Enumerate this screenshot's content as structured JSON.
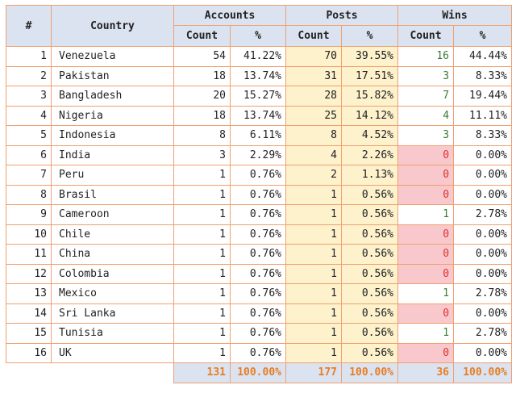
{
  "headers": {
    "hash": "#",
    "country": "Country",
    "accounts": "Accounts",
    "posts": "Posts",
    "wins": "Wins",
    "count": "Count",
    "pct": "%"
  },
  "rows": [
    {
      "n": "1",
      "country": "Venezuela",
      "acc_c": "54",
      "acc_p": "41.22%",
      "post_c": "70",
      "post_p": "39.55%",
      "win_c": "16",
      "win_p": "44.44%"
    },
    {
      "n": "2",
      "country": "Pakistan",
      "acc_c": "18",
      "acc_p": "13.74%",
      "post_c": "31",
      "post_p": "17.51%",
      "win_c": "3",
      "win_p": "8.33%"
    },
    {
      "n": "3",
      "country": "Bangladesh",
      "acc_c": "20",
      "acc_p": "15.27%",
      "post_c": "28",
      "post_p": "15.82%",
      "win_c": "7",
      "win_p": "19.44%"
    },
    {
      "n": "4",
      "country": "Nigeria",
      "acc_c": "18",
      "acc_p": "13.74%",
      "post_c": "25",
      "post_p": "14.12%",
      "win_c": "4",
      "win_p": "11.11%"
    },
    {
      "n": "5",
      "country": "Indonesia",
      "acc_c": "8",
      "acc_p": "6.11%",
      "post_c": "8",
      "post_p": "4.52%",
      "win_c": "3",
      "win_p": "8.33%"
    },
    {
      "n": "6",
      "country": "India",
      "acc_c": "3",
      "acc_p": "2.29%",
      "post_c": "4",
      "post_p": "2.26%",
      "win_c": "0",
      "win_p": "0.00%"
    },
    {
      "n": "7",
      "country": "Peru",
      "acc_c": "1",
      "acc_p": "0.76%",
      "post_c": "2",
      "post_p": "1.13%",
      "win_c": "0",
      "win_p": "0.00%"
    },
    {
      "n": "8",
      "country": "Brasil",
      "acc_c": "1",
      "acc_p": "0.76%",
      "post_c": "1",
      "post_p": "0.56%",
      "win_c": "0",
      "win_p": "0.00%"
    },
    {
      "n": "9",
      "country": "Cameroon",
      "acc_c": "1",
      "acc_p": "0.76%",
      "post_c": "1",
      "post_p": "0.56%",
      "win_c": "1",
      "win_p": "2.78%"
    },
    {
      "n": "10",
      "country": "Chile",
      "acc_c": "1",
      "acc_p": "0.76%",
      "post_c": "1",
      "post_p": "0.56%",
      "win_c": "0",
      "win_p": "0.00%"
    },
    {
      "n": "11",
      "country": "China",
      "acc_c": "1",
      "acc_p": "0.76%",
      "post_c": "1",
      "post_p": "0.56%",
      "win_c": "0",
      "win_p": "0.00%"
    },
    {
      "n": "12",
      "country": "Colombia",
      "acc_c": "1",
      "acc_p": "0.76%",
      "post_c": "1",
      "post_p": "0.56%",
      "win_c": "0",
      "win_p": "0.00%"
    },
    {
      "n": "13",
      "country": "Mexico",
      "acc_c": "1",
      "acc_p": "0.76%",
      "post_c": "1",
      "post_p": "0.56%",
      "win_c": "1",
      "win_p": "2.78%"
    },
    {
      "n": "14",
      "country": "Sri Lanka",
      "acc_c": "1",
      "acc_p": "0.76%",
      "post_c": "1",
      "post_p": "0.56%",
      "win_c": "0",
      "win_p": "0.00%"
    },
    {
      "n": "15",
      "country": "Tunisia",
      "acc_c": "1",
      "acc_p": "0.76%",
      "post_c": "1",
      "post_p": "0.56%",
      "win_c": "1",
      "win_p": "2.78%"
    },
    {
      "n": "16",
      "country": "UK",
      "acc_c": "1",
      "acc_p": "0.76%",
      "post_c": "1",
      "post_p": "0.56%",
      "win_c": "0",
      "win_p": "0.00%"
    }
  ],
  "totals": {
    "acc_c": "131",
    "acc_p": "100.00%",
    "post_c": "177",
    "post_p": "100.00%",
    "win_c": "36",
    "win_p": "100.00%"
  },
  "colors": {
    "header_bg": "#dbe3f1",
    "border": "#f0a070",
    "posts_bg": "#fdf2cc",
    "zero_wins_bg": "#f8c8cc",
    "zero_wins_text": "#dd3333",
    "wins_text": "#3a7a3a",
    "totals_text": "#e67e22"
  }
}
